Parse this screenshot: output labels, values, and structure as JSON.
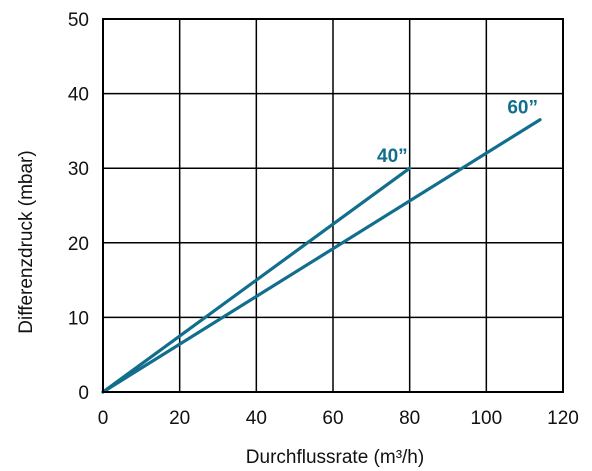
{
  "chart_data": {
    "type": "line",
    "xlabel": "Durchflussrate (m³/h)",
    "ylabel": "Differenzdruck (mbar)",
    "xlim": [
      0,
      120
    ],
    "ylim": [
      0,
      50
    ],
    "x_ticks": [
      "0",
      "20",
      "40",
      "60",
      "80",
      "100",
      "120"
    ],
    "y_ticks": [
      "0",
      "10",
      "20",
      "30",
      "40",
      "50"
    ],
    "grid": true,
    "line_color": "#116e8c",
    "series": [
      {
        "name": "40”",
        "x": [
          0,
          80
        ],
        "y": [
          0,
          30
        ]
      },
      {
        "name": "60”",
        "x": [
          0,
          114
        ],
        "y": [
          0,
          36.5
        ]
      }
    ]
  }
}
